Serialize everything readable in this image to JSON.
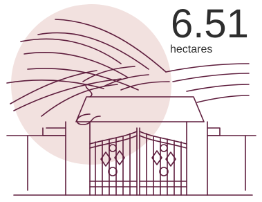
{
  "stat": {
    "value": 6.51,
    "unit": "hectares"
  }
}
